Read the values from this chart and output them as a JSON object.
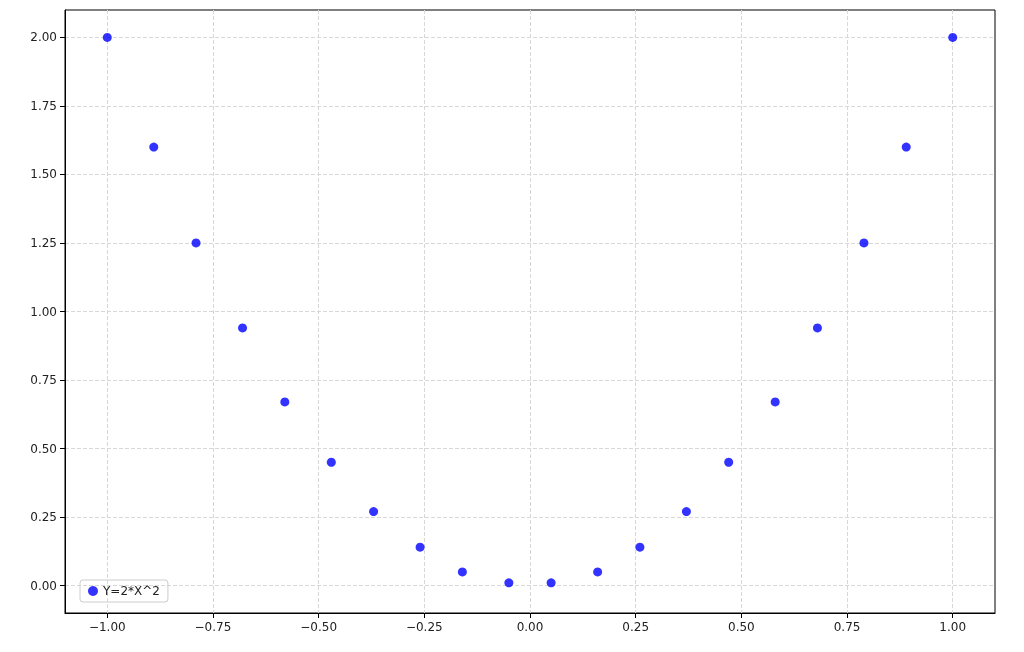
{
  "chart_data": {
    "type": "scatter",
    "x": [
      -1.0,
      -0.89,
      -0.79,
      -0.68,
      -0.58,
      -0.47,
      -0.37,
      -0.26,
      -0.16,
      -0.05,
      0.05,
      0.16,
      0.26,
      0.37,
      0.47,
      0.58,
      0.68,
      0.79,
      0.89,
      1.0
    ],
    "series": [
      {
        "name": "Y=2*X^2",
        "color": "#0000ff",
        "values": [
          2.0,
          1.6,
          1.25,
          0.94,
          0.67,
          0.45,
          0.27,
          0.14,
          0.05,
          0.01,
          0.01,
          0.05,
          0.14,
          0.27,
          0.45,
          0.67,
          0.94,
          1.25,
          1.6,
          2.0
        ]
      }
    ],
    "xlim": [
      -1.1,
      1.1
    ],
    "xticks": [
      {
        "value": -1,
        "label": "−1.00"
      },
      {
        "value": -0.75,
        "label": "−0.75"
      },
      {
        "value": -0.5,
        "label": "−0.50"
      },
      {
        "value": -0.25,
        "label": "−0.25"
      },
      {
        "value": 0,
        "label": "0.00"
      },
      {
        "value": 0.25,
        "label": "0.25"
      },
      {
        "value": 0.5,
        "label": "0.50"
      },
      {
        "value": 0.75,
        "label": "0.75"
      },
      {
        "value": 1,
        "label": "1.00"
      }
    ],
    "ylim": [
      -0.1,
      2.1
    ],
    "yticks": [
      {
        "value": 0,
        "label": "0.00"
      },
      {
        "value": 0.25,
        "label": "0.25"
      },
      {
        "value": 0.5,
        "label": "0.50"
      },
      {
        "value": 0.75,
        "label": "0.75"
      },
      {
        "value": 1,
        "label": "1.00"
      },
      {
        "value": 1.25,
        "label": "1.25"
      },
      {
        "value": 1.5,
        "label": "1.50"
      },
      {
        "value": 1.75,
        "label": "1.75"
      },
      {
        "value": 2,
        "label": "2.00"
      }
    ],
    "grid": true,
    "legend": "bottom left",
    "marker": "circle"
  }
}
